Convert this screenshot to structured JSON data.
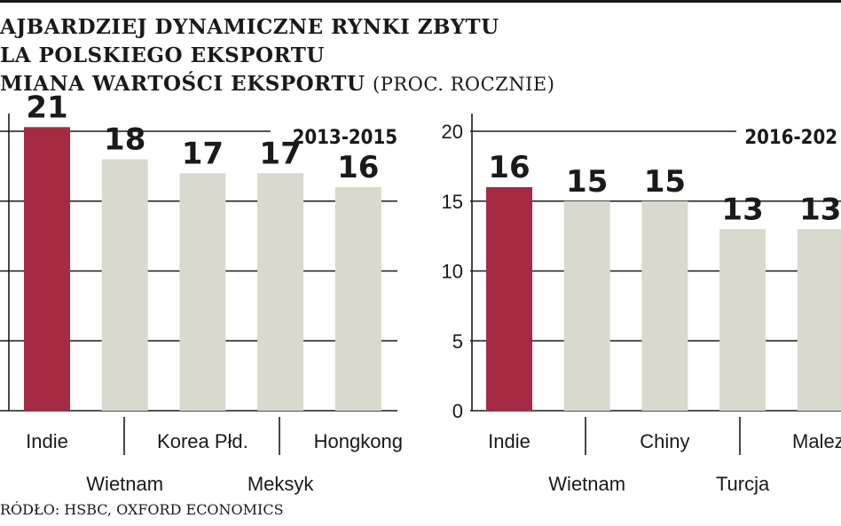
{
  "title": {
    "line1": "AJBARDZIEJ DYNAMICZNE RYNKI ZBYTU",
    "line2": "LA POLSKIEGO EKSPORTU",
    "line3": "MIANA WARTOŚCI EKSPORTU",
    "unit": "(PROC. ROCZNIE)"
  },
  "source": "RÓDŁO: HSBC, OXFORD ECONOMICS",
  "colors": {
    "highlight": "#a52a44",
    "bar": "#d9d9cf",
    "grid": "#1a1a1a"
  },
  "chart_data": [
    {
      "type": "bar",
      "title": "2013-2015",
      "categories": [
        "Indie",
        "Wietnam",
        "Korea Płd.",
        "Meksyk",
        "Hongkong"
      ],
      "values": [
        21,
        18,
        17,
        17,
        16
      ],
      "value_labels": [
        "21",
        "18",
        "17",
        "17",
        "16"
      ],
      "ylim": [
        0,
        20
      ],
      "highlight_index": 0,
      "grid": true
    },
    {
      "type": "bar",
      "title": "2016-202",
      "categories": [
        "Indie",
        "Wietnam",
        "Chiny",
        "Turcja",
        "Malezj"
      ],
      "values": [
        16,
        15,
        15,
        13,
        13
      ],
      "value_labels": [
        "16",
        "15",
        "15",
        "13",
        "13"
      ],
      "y_ticks": [
        "0",
        "5",
        "10",
        "15",
        "20"
      ],
      "ylim": [
        0,
        20
      ],
      "highlight_index": 0,
      "grid": true
    }
  ]
}
